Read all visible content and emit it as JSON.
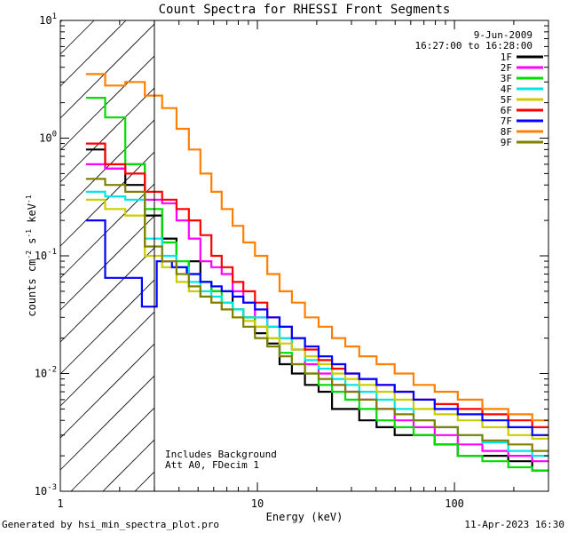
{
  "chart_data": {
    "type": "line",
    "title": "Count Spectra for RHESSI Front Segments",
    "xlabel": "Energy (keV)",
    "ylabel": {
      "base": "counts cm",
      "exp1": "-2",
      "mid": " s",
      "exp2": "-1",
      "unit": " keV",
      "exp3": "-1"
    },
    "xscale": "log",
    "yscale": "log",
    "xlim": [
      1,
      300
    ],
    "ylim": [
      0.001,
      10
    ],
    "x_ticks": [
      {
        "value": 1,
        "label": "1"
      },
      {
        "value": 10,
        "label": "10"
      },
      {
        "value": 100,
        "label": "100"
      }
    ],
    "y_ticks": [
      {
        "value": 0.001,
        "base": "10",
        "exp": "-3"
      },
      {
        "value": 0.01,
        "base": "10",
        "exp": "-2"
      },
      {
        "value": 0.1,
        "base": "10",
        "exp": "-1"
      },
      {
        "value": 1,
        "base": "10",
        "exp": "0"
      },
      {
        "value": 10,
        "base": "10",
        "exp": "1"
      }
    ],
    "date": "9-Jun-2009",
    "time_range": "16:27:00 to 16:28:00",
    "attenuator_line_keV": 3,
    "annotations": [
      "Includes Background",
      "Att A0, FDecim 1"
    ],
    "series": [
      {
        "name": "1F",
        "color": "#000000",
        "points": [
          [
            1.5,
            0.8
          ],
          [
            1.9,
            0.55
          ],
          [
            2.4,
            0.4
          ],
          [
            3.0,
            0.22
          ],
          [
            3.6,
            0.14
          ],
          [
            4.2,
            0.08
          ],
          [
            4.8,
            0.09
          ],
          [
            5.5,
            0.06
          ],
          [
            6.2,
            0.05
          ],
          [
            7.0,
            0.05
          ],
          [
            8.0,
            0.035
          ],
          [
            9.0,
            0.03
          ],
          [
            10.5,
            0.022
          ],
          [
            12.0,
            0.018
          ],
          [
            14.0,
            0.012
          ],
          [
            16.0,
            0.01
          ],
          [
            19.0,
            0.008
          ],
          [
            22.0,
            0.007
          ],
          [
            26.0,
            0.005
          ],
          [
            30.0,
            0.005
          ],
          [
            36.0,
            0.004
          ],
          [
            45.0,
            0.0035
          ],
          [
            55.0,
            0.003
          ],
          [
            70.0,
            0.003
          ],
          [
            90.0,
            0.0025
          ],
          [
            120.0,
            0.002
          ],
          [
            160.0,
            0.002
          ],
          [
            220.0,
            0.0018
          ],
          [
            280.0,
            0.0015
          ]
        ]
      },
      {
        "name": "2F",
        "color": "#ff00ff",
        "points": [
          [
            1.5,
            0.6
          ],
          [
            1.9,
            0.55
          ],
          [
            2.4,
            0.6
          ],
          [
            3.0,
            0.3
          ],
          [
            3.6,
            0.28
          ],
          [
            4.2,
            0.2
          ],
          [
            4.8,
            0.14
          ],
          [
            5.5,
            0.09
          ],
          [
            6.2,
            0.08
          ],
          [
            7.0,
            0.07
          ],
          [
            8.0,
            0.05
          ],
          [
            9.0,
            0.04
          ],
          [
            10.5,
            0.03
          ],
          [
            12.0,
            0.025
          ],
          [
            14.0,
            0.02
          ],
          [
            16.0,
            0.016
          ],
          [
            19.0,
            0.012
          ],
          [
            22.0,
            0.01
          ],
          [
            26.0,
            0.008
          ],
          [
            30.0,
            0.007
          ],
          [
            36.0,
            0.006
          ],
          [
            45.0,
            0.005
          ],
          [
            55.0,
            0.004
          ],
          [
            70.0,
            0.0035
          ],
          [
            90.0,
            0.003
          ],
          [
            120.0,
            0.0025
          ],
          [
            160.0,
            0.0022
          ],
          [
            220.0,
            0.002
          ],
          [
            280.0,
            0.0018
          ]
        ]
      },
      {
        "name": "3F",
        "color": "#00dd00",
        "points": [
          [
            1.5,
            2.2
          ],
          [
            1.9,
            1.5
          ],
          [
            2.4,
            0.6
          ],
          [
            3.0,
            0.25
          ],
          [
            3.6,
            0.13
          ],
          [
            4.2,
            0.09
          ],
          [
            4.8,
            0.07
          ],
          [
            5.5,
            0.06
          ],
          [
            6.2,
            0.05
          ],
          [
            7.0,
            0.04
          ],
          [
            8.0,
            0.035
          ],
          [
            9.0,
            0.03
          ],
          [
            10.5,
            0.025
          ],
          [
            12.0,
            0.02
          ],
          [
            14.0,
            0.015
          ],
          [
            16.0,
            0.012
          ],
          [
            19.0,
            0.01
          ],
          [
            22.0,
            0.008
          ],
          [
            26.0,
            0.007
          ],
          [
            30.0,
            0.006
          ],
          [
            36.0,
            0.005
          ],
          [
            45.0,
            0.004
          ],
          [
            55.0,
            0.0035
          ],
          [
            70.0,
            0.003
          ],
          [
            90.0,
            0.0025
          ],
          [
            120.0,
            0.002
          ],
          [
            160.0,
            0.0018
          ],
          [
            220.0,
            0.0016
          ],
          [
            280.0,
            0.0015
          ]
        ]
      },
      {
        "name": "4F",
        "color": "#00e6e6",
        "points": [
          [
            1.5,
            0.35
          ],
          [
            1.9,
            0.32
          ],
          [
            2.4,
            0.3
          ],
          [
            3.0,
            0.14
          ],
          [
            3.6,
            0.1
          ],
          [
            4.2,
            0.08
          ],
          [
            4.8,
            0.06
          ],
          [
            5.5,
            0.05
          ],
          [
            6.2,
            0.045
          ],
          [
            7.0,
            0.04
          ],
          [
            8.0,
            0.035
          ],
          [
            9.0,
            0.03
          ],
          [
            10.5,
            0.03
          ],
          [
            12.0,
            0.025
          ],
          [
            14.0,
            0.02
          ],
          [
            16.0,
            0.016
          ],
          [
            19.0,
            0.013
          ],
          [
            22.0,
            0.011
          ],
          [
            26.0,
            0.009
          ],
          [
            30.0,
            0.008
          ],
          [
            36.0,
            0.007
          ],
          [
            45.0,
            0.006
          ],
          [
            55.0,
            0.005
          ],
          [
            70.0,
            0.004
          ],
          [
            90.0,
            0.0035
          ],
          [
            120.0,
            0.003
          ],
          [
            160.0,
            0.0026
          ],
          [
            220.0,
            0.0022
          ],
          [
            280.0,
            0.002
          ]
        ]
      },
      {
        "name": "5F",
        "color": "#cccc00",
        "points": [
          [
            1.5,
            0.3
          ],
          [
            1.9,
            0.25
          ],
          [
            2.4,
            0.22
          ],
          [
            3.0,
            0.1
          ],
          [
            3.6,
            0.08
          ],
          [
            4.2,
            0.06
          ],
          [
            4.8,
            0.05
          ],
          [
            5.5,
            0.045
          ],
          [
            6.2,
            0.04
          ],
          [
            7.0,
            0.035
          ],
          [
            8.0,
            0.03
          ],
          [
            9.0,
            0.028
          ],
          [
            10.5,
            0.025
          ],
          [
            12.0,
            0.02
          ],
          [
            14.0,
            0.018
          ],
          [
            16.0,
            0.016
          ],
          [
            19.0,
            0.014
          ],
          [
            22.0,
            0.012
          ],
          [
            26.0,
            0.01
          ],
          [
            30.0,
            0.009
          ],
          [
            36.0,
            0.008
          ],
          [
            45.0,
            0.007
          ],
          [
            55.0,
            0.006
          ],
          [
            70.0,
            0.005
          ],
          [
            90.0,
            0.0045
          ],
          [
            120.0,
            0.004
          ],
          [
            160.0,
            0.0035
          ],
          [
            220.0,
            0.003
          ],
          [
            280.0,
            0.0028
          ]
        ]
      },
      {
        "name": "6F",
        "color": "#ff0000",
        "points": [
          [
            1.5,
            0.9
          ],
          [
            1.9,
            0.6
          ],
          [
            2.4,
            0.5
          ],
          [
            3.0,
            0.35
          ],
          [
            3.6,
            0.3
          ],
          [
            4.2,
            0.25
          ],
          [
            4.8,
            0.2
          ],
          [
            5.5,
            0.15
          ],
          [
            6.2,
            0.1
          ],
          [
            7.0,
            0.08
          ],
          [
            8.0,
            0.06
          ],
          [
            9.0,
            0.05
          ],
          [
            10.5,
            0.04
          ],
          [
            12.0,
            0.03
          ],
          [
            14.0,
            0.025
          ],
          [
            16.0,
            0.02
          ],
          [
            19.0,
            0.016
          ],
          [
            22.0,
            0.013
          ],
          [
            26.0,
            0.011
          ],
          [
            30.0,
            0.01
          ],
          [
            36.0,
            0.009
          ],
          [
            45.0,
            0.008
          ],
          [
            55.0,
            0.007
          ],
          [
            70.0,
            0.006
          ],
          [
            90.0,
            0.0055
          ],
          [
            120.0,
            0.005
          ],
          [
            160.0,
            0.0045
          ],
          [
            220.0,
            0.004
          ],
          [
            280.0,
            0.0035
          ]
        ]
      },
      {
        "name": "7F",
        "color": "#0000ff",
        "points": [
          [
            1.5,
            0.2
          ],
          [
            1.9,
            0.065
          ],
          [
            2.4,
            0.065
          ],
          [
            2.8,
            0.037
          ],
          [
            3.4,
            0.09
          ],
          [
            4.0,
            0.08
          ],
          [
            4.8,
            0.07
          ],
          [
            5.5,
            0.06
          ],
          [
            6.2,
            0.055
          ],
          [
            7.0,
            0.05
          ],
          [
            8.0,
            0.045
          ],
          [
            9.0,
            0.04
          ],
          [
            10.5,
            0.035
          ],
          [
            12.0,
            0.03
          ],
          [
            14.0,
            0.025
          ],
          [
            16.0,
            0.02
          ],
          [
            19.0,
            0.017
          ],
          [
            22.0,
            0.014
          ],
          [
            26.0,
            0.012
          ],
          [
            30.0,
            0.01
          ],
          [
            36.0,
            0.009
          ],
          [
            45.0,
            0.008
          ],
          [
            55.0,
            0.007
          ],
          [
            70.0,
            0.006
          ],
          [
            90.0,
            0.005
          ],
          [
            120.0,
            0.0045
          ],
          [
            160.0,
            0.004
          ],
          [
            220.0,
            0.0035
          ],
          [
            280.0,
            0.003
          ]
        ]
      },
      {
        "name": "8F",
        "color": "#ff8000",
        "points": [
          [
            1.5,
            3.5
          ],
          [
            1.9,
            2.8
          ],
          [
            2.4,
            3.0
          ],
          [
            3.0,
            2.3
          ],
          [
            3.6,
            1.8
          ],
          [
            4.2,
            1.2
          ],
          [
            4.8,
            0.8
          ],
          [
            5.5,
            0.5
          ],
          [
            6.2,
            0.35
          ],
          [
            7.0,
            0.25
          ],
          [
            8.0,
            0.18
          ],
          [
            9.0,
            0.13
          ],
          [
            10.5,
            0.1
          ],
          [
            12.0,
            0.07
          ],
          [
            14.0,
            0.05
          ],
          [
            16.0,
            0.04
          ],
          [
            19.0,
            0.03
          ],
          [
            22.0,
            0.025
          ],
          [
            26.0,
            0.02
          ],
          [
            30.0,
            0.017
          ],
          [
            36.0,
            0.014
          ],
          [
            45.0,
            0.012
          ],
          [
            55.0,
            0.01
          ],
          [
            70.0,
            0.008
          ],
          [
            90.0,
            0.007
          ],
          [
            120.0,
            0.006
          ],
          [
            160.0,
            0.005
          ],
          [
            220.0,
            0.0045
          ],
          [
            280.0,
            0.004
          ]
        ]
      },
      {
        "name": "9F",
        "color": "#808000",
        "points": [
          [
            1.5,
            0.45
          ],
          [
            1.9,
            0.4
          ],
          [
            2.4,
            0.35
          ],
          [
            3.0,
            0.12
          ],
          [
            3.6,
            0.09
          ],
          [
            4.2,
            0.07
          ],
          [
            4.8,
            0.055
          ],
          [
            5.5,
            0.045
          ],
          [
            6.2,
            0.04
          ],
          [
            7.0,
            0.035
          ],
          [
            8.0,
            0.03
          ],
          [
            9.0,
            0.025
          ],
          [
            10.5,
            0.02
          ],
          [
            12.0,
            0.017
          ],
          [
            14.0,
            0.014
          ],
          [
            16.0,
            0.012
          ],
          [
            19.0,
            0.01
          ],
          [
            22.0,
            0.009
          ],
          [
            26.0,
            0.008
          ],
          [
            30.0,
            0.007
          ],
          [
            36.0,
            0.006
          ],
          [
            45.0,
            0.005
          ],
          [
            55.0,
            0.0045
          ],
          [
            70.0,
            0.004
          ],
          [
            90.0,
            0.0035
          ],
          [
            120.0,
            0.003
          ],
          [
            160.0,
            0.0027
          ],
          [
            220.0,
            0.0025
          ],
          [
            280.0,
            0.0022
          ]
        ]
      }
    ]
  },
  "footer": {
    "generated_by": "Generated by hsi_min_spectra_plot.pro",
    "timestamp": "11-Apr-2023 16:30"
  }
}
